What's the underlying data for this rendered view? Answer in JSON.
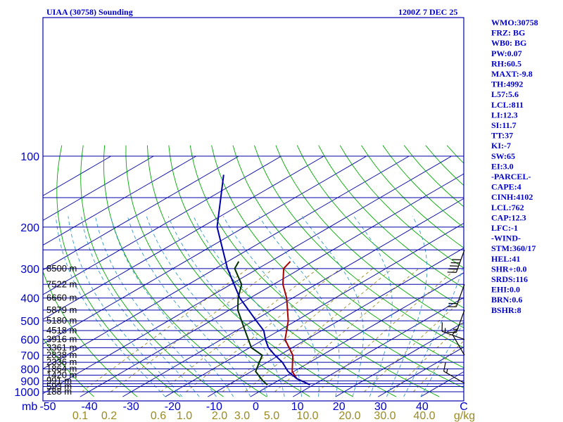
{
  "header": {
    "station": "UIAA (30758) Sounding",
    "time": "1200Z  7 DEC 25"
  },
  "chart_data": {
    "type": "line",
    "xlabel": "",
    "ylabel": "mb",
    "pressure_ticks": [
      {
        "p": 100,
        "label": "100"
      },
      {
        "p": 200,
        "label": "200"
      },
      {
        "p": 300,
        "label": "300"
      },
      {
        "p": 400,
        "label": "400"
      },
      {
        "p": 500,
        "label": "500"
      },
      {
        "p": 600,
        "label": "600"
      },
      {
        "p": 700,
        "label": "700"
      },
      {
        "p": 800,
        "label": "800"
      },
      {
        "p": 900,
        "label": "900"
      },
      {
        "p": 1000,
        "label": "1000"
      }
    ],
    "isobars": [
      100,
      150,
      200,
      250,
      300,
      350,
      400,
      450,
      500,
      550,
      600,
      650,
      700,
      750,
      800,
      850,
      900,
      925,
      950,
      1000
    ],
    "temperature_ticks": [
      "-50",
      "-40",
      "-30",
      "-20",
      "-10",
      "0",
      "10",
      "20",
      "30",
      "40",
      "C"
    ],
    "mixing_ratio_labels": [
      "0.1",
      "0.2",
      "0.6",
      "1.0",
      "2.0",
      "3.0",
      "5.0",
      "10.0",
      "20.0",
      "30.0",
      "40.0",
      "g/kg"
    ],
    "heights": [
      {
        "p": 300,
        "label": "8500 m"
      },
      {
        "p": 350,
        "label": "7522 m"
      },
      {
        "p": 400,
        "label": "6660 m"
      },
      {
        "p": 450,
        "label": "5879 m"
      },
      {
        "p": 500,
        "label": "5180 m"
      },
      {
        "p": 550,
        "label": "4518 m"
      },
      {
        "p": 600,
        "label": "3916 m"
      },
      {
        "p": 650,
        "label": "3361 m"
      },
      {
        "p": 700,
        "label": "2838 m"
      },
      {
        "p": 750,
        "label": "2336 m"
      },
      {
        "p": 800,
        "label": "1864 m"
      },
      {
        "p": 850,
        "label": "1420 m"
      },
      {
        "p": 900,
        "label": "991 m"
      },
      {
        "p": 950,
        "label": "593 m"
      },
      {
        "p": 1000,
        "label": "188 m"
      }
    ],
    "series": [
      {
        "kind": "temperature",
        "color": "#aa0000",
        "points": [
          [
            930,
            8.8
          ],
          [
            880,
            3.6
          ],
          [
            820,
            -0.4
          ],
          [
            700,
            -6.8
          ],
          [
            600,
            -15.0
          ],
          [
            500,
            -21.8
          ],
          [
            400,
            -31.4
          ],
          [
            350,
            -37.8
          ],
          [
            300,
            -44.0
          ],
          [
            280,
            -45.3
          ]
        ]
      },
      {
        "kind": "dewpoint",
        "color": "#003300",
        "points": [
          [
            935,
            -0.8
          ],
          [
            900,
            -3.4
          ],
          [
            820,
            -9.0
          ],
          [
            700,
            -14.0
          ],
          [
            650,
            -19.6
          ],
          [
            550,
            -28.0
          ],
          [
            450,
            -38.0
          ],
          [
            400,
            -42.8
          ],
          [
            350,
            -47.5
          ],
          [
            300,
            -55.5
          ],
          [
            280,
            -57.4
          ]
        ]
      },
      {
        "kind": "parcel",
        "color": "#0000aa",
        "points": [
          [
            935,
            9.2
          ],
          [
            880,
            3.6
          ],
          [
            820,
            -1.4
          ],
          [
            750,
            -6.4
          ],
          [
            700,
            -11.0
          ],
          [
            650,
            -15.6
          ],
          [
            600,
            -19.6
          ],
          [
            550,
            -23.6
          ],
          [
            500,
            -29.3
          ],
          [
            400,
            -42.4
          ],
          [
            300,
            -57.2
          ],
          [
            200,
            -76.4
          ],
          [
            120,
            -96.0
          ]
        ]
      }
    ],
    "wind_barbs": [
      {
        "p": 920,
        "dir": 300,
        "spd": 15
      },
      {
        "p": 700,
        "dir": 330,
        "spd": 10
      },
      {
        "p": 600,
        "dir": 290,
        "spd": 15
      },
      {
        "p": 450,
        "dir": 200,
        "spd": 15
      },
      {
        "p": 350,
        "dir": 200,
        "spd": 20
      },
      {
        "p": 250,
        "dir": 200,
        "spd": 50
      }
    ]
  },
  "indices": [
    "WMO:30758",
    "FRZ: BG",
    "WB0: BG",
    "PW:0.07",
    "RH:60.5",
    "MAXT:-9.8",
    "TH:4992",
    "L57:5.6",
    "LCL:811",
    "LI:12.3",
    "SI:11.7",
    "TT:37",
    "KI:-7",
    "SW:65",
    "EI:3.0",
    "-PARCEL-",
    "CAPE:4",
    "CINH:4102",
    "LCL:762",
    "CAP:12.3",
    "LFC:-1",
    "-WIND-",
    "STM:360/17",
    "HEL:41",
    "SHR+:0.0",
    "SRDS:116",
    "EHI:0.0",
    "BRN:0.6",
    "BSHR:8"
  ],
  "colors": {
    "frame": "#0000aa",
    "isobar": "#0000aa",
    "isotherm": "#0000aa",
    "dry_adiabat": "#00aa00",
    "moist_adiabat": "#3399cc",
    "mixing_ratio": "#9a8a20",
    "temperature": "#aa0000",
    "dewpoint": "#003300",
    "parcel": "#0000aa",
    "wind": "#000000"
  }
}
